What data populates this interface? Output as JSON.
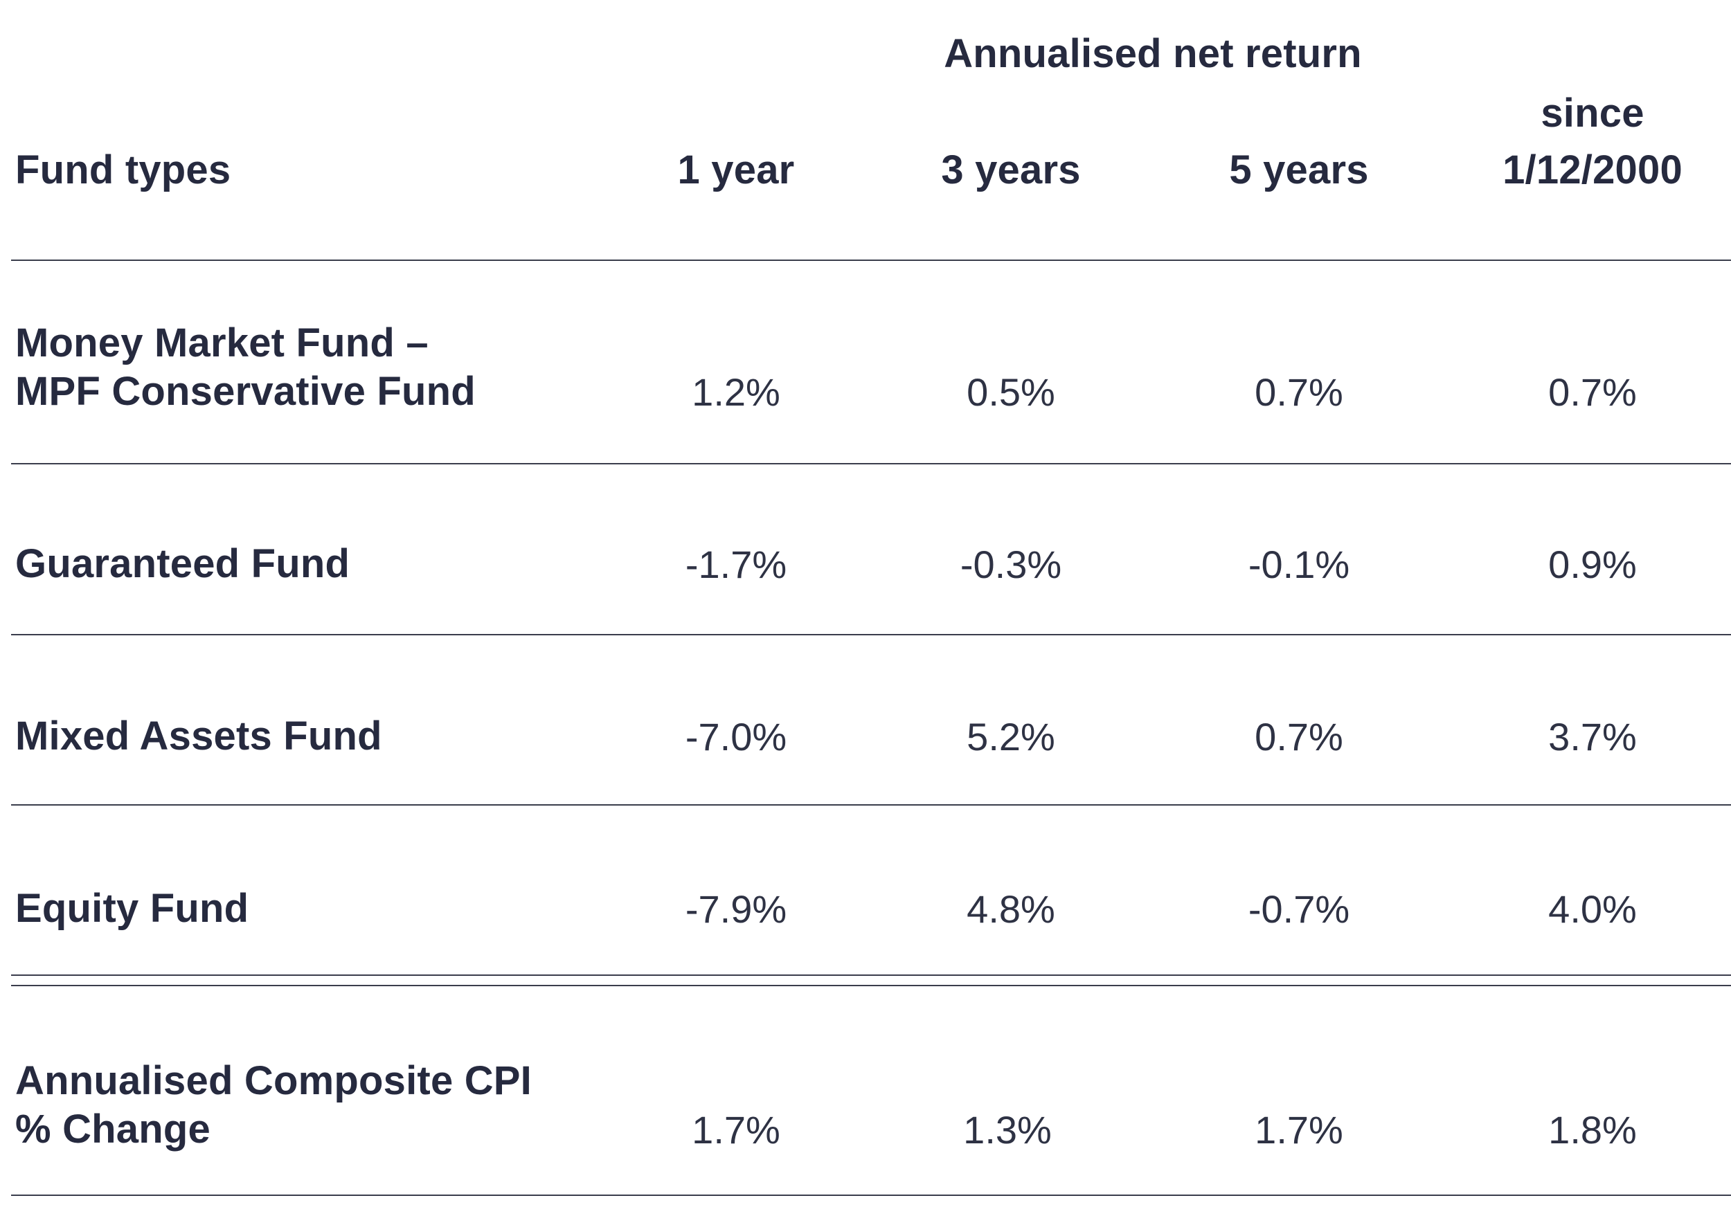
{
  "header": {
    "group_label": "Annualised net return",
    "fund_types_label": "Fund types",
    "columns": [
      "1 year",
      "3 years",
      "5 years"
    ],
    "since_label_line1": "since",
    "since_label_line2": "1/12/2000"
  },
  "rows": [
    {
      "label_line1": "Money Market Fund –",
      "label_line2": "MPF Conservative Fund",
      "values": [
        "1.2%",
        "0.5%",
        "0.7%",
        "0.7%"
      ]
    },
    {
      "label_line1": "Guaranteed Fund",
      "values": [
        "-1.7%",
        "-0.3%",
        "-0.1%",
        "0.9%"
      ]
    },
    {
      "label_line1": "Mixed Assets Fund",
      "values": [
        "-7.0%",
        "5.2%",
        "0.7%",
        "3.7%"
      ]
    },
    {
      "label_line1": "Equity Fund",
      "values": [
        "-7.9%",
        "4.8%",
        "-0.7%",
        "4.0%"
      ]
    }
  ],
  "cpi_row": {
    "label_line1": "Annualised Composite CPI",
    "label_line2": "% Change",
    "values": [
      "1.7%",
      "1.3%",
      "1.7%",
      "1.8%"
    ]
  }
}
